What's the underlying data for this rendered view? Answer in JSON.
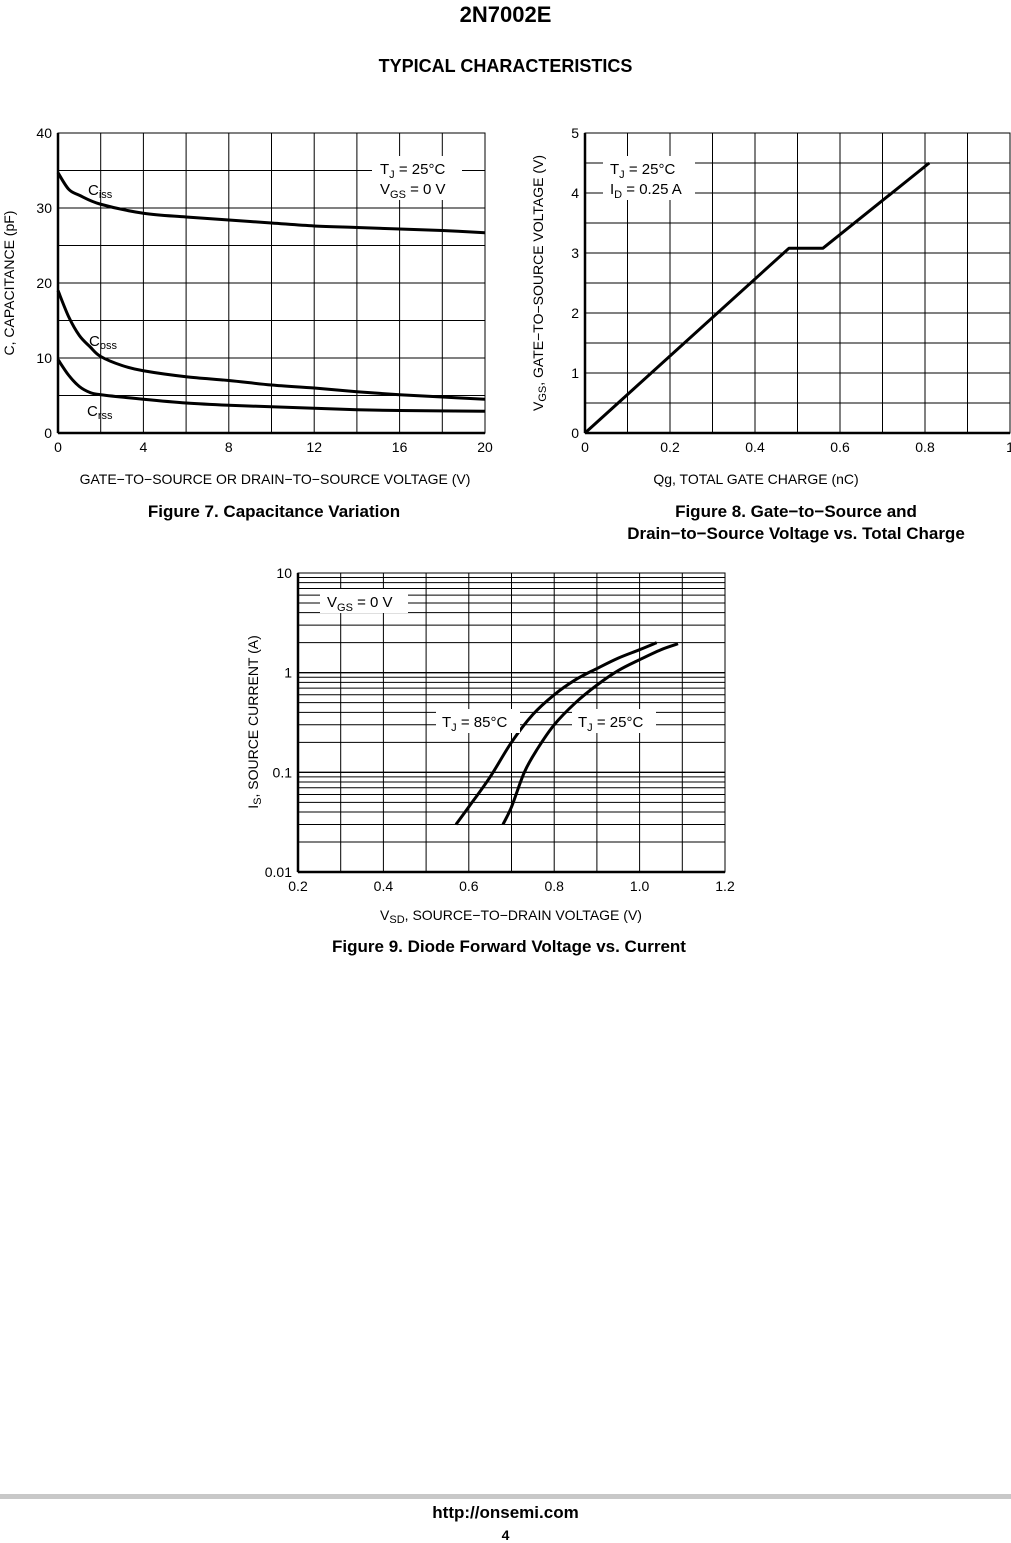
{
  "header": {
    "part_number": "2N7002E",
    "section_title": "TYPICAL CHARACTERISTICS"
  },
  "footer": {
    "url": "http://onsemi.com",
    "page": "4"
  },
  "chart_data": [
    {
      "id": "fig7",
      "type": "line",
      "caption": "Figure 7. Capacitance Variation",
      "xlabel": "GATE−TO−SOURCE OR DRAIN−TO−SOURCE VOLTAGE (V)",
      "ylabel": "C, CAPACITANCE (pF)",
      "xlim": [
        0,
        20
      ],
      "ylim": [
        0,
        40
      ],
      "xticks": [
        0,
        4,
        8,
        12,
        16,
        20
      ],
      "yticks": [
        0,
        10,
        20,
        30,
        40
      ],
      "xgrid_step": 2,
      "ygrid_step": 5,
      "grid": true,
      "annotations": [
        {
          "main": "T",
          "sub": "J",
          "rest": " = 25°C"
        },
        {
          "main": "V",
          "sub": "GS",
          "rest": " = 0 V"
        }
      ],
      "series": [
        {
          "name": "Ciss",
          "label_main": "C",
          "label_sub": "iss",
          "x": [
            0,
            0.5,
            1,
            2,
            4,
            6,
            8,
            10,
            12,
            14,
            16,
            18,
            20
          ],
          "y": [
            34.7,
            32.5,
            31.7,
            30.5,
            29.3,
            28.8,
            28.4,
            28,
            27.6,
            27.4,
            27.2,
            27,
            26.7
          ]
        },
        {
          "name": "Coss",
          "label_main": "C",
          "label_sub": "oss",
          "x": [
            0,
            0.5,
            1,
            1.5,
            2,
            3,
            4,
            6,
            8,
            10,
            12,
            14,
            16,
            18,
            20
          ],
          "y": [
            19,
            15.5,
            13,
            11.5,
            10.2,
            9,
            8.3,
            7.5,
            7,
            6.4,
            6,
            5.5,
            5.1,
            4.8,
            4.5
          ]
        },
        {
          "name": "Crss",
          "label_main": "C",
          "label_sub": "rss",
          "x": [
            0,
            0.5,
            1,
            1.5,
            2,
            4,
            6,
            8,
            10,
            12,
            14,
            16,
            20
          ],
          "y": [
            9.8,
            7.7,
            6.2,
            5.4,
            5.1,
            4.5,
            4,
            3.7,
            3.5,
            3.3,
            3.1,
            3,
            2.9
          ]
        }
      ]
    },
    {
      "id": "fig8",
      "type": "line",
      "caption_lines": [
        "Figure 8. Gate−to−Source and",
        "Drain−to−Source Voltage vs. Total Charge"
      ],
      "xlabel": "Qg, TOTAL GATE CHARGE (nC)",
      "ylabel_main": "V",
      "ylabel_sub": "GS",
      "ylabel_rest": ", GATE−TO−SOURCE VOLTAGE (V)",
      "xlim": [
        0,
        1
      ],
      "ylim": [
        0,
        5
      ],
      "xticks": [
        0,
        0.2,
        0.4,
        0.6,
        0.8,
        1
      ],
      "xtick_labels": [
        "0",
        "0.2",
        "0.4",
        "0.6",
        "0.8",
        "1"
      ],
      "yticks": [
        0,
        1,
        2,
        3,
        4,
        5
      ],
      "xgrid_step": 0.1,
      "ygrid_step": 0.5,
      "grid": true,
      "annotations": [
        {
          "main": "T",
          "sub": "J",
          "rest": " = 25°C"
        },
        {
          "main": "I",
          "sub": "D",
          "rest": " = 0.25 A"
        }
      ],
      "series": [
        {
          "x": [
            0,
            0.48,
            0.56,
            0.81
          ],
          "y": [
            0,
            3.08,
            3.08,
            4.5
          ]
        }
      ]
    },
    {
      "id": "fig9",
      "type": "line",
      "caption": "Figure 9. Diode Forward Voltage vs. Current",
      "xlabel_main": "V",
      "xlabel_sub": "SD",
      "xlabel_rest": ", SOURCE−TO−DRAIN VOLTAGE (V)",
      "ylabel_main": "I",
      "ylabel_sub": "S",
      "ylabel_rest": ", SOURCE CURRENT (A)",
      "xlim": [
        0.2,
        1.2
      ],
      "ylim": [
        0.01,
        10
      ],
      "yscale": "log",
      "xticks": [
        0.2,
        0.4,
        0.6,
        0.8,
        1.0,
        1.2
      ],
      "xtick_labels": [
        "0.2",
        "0.4",
        "0.6",
        "0.8",
        "1.0",
        "1.2"
      ],
      "yticks": [
        0.01,
        0.1,
        1,
        10
      ],
      "ytick_labels": [
        "0.01",
        "0.1",
        "1",
        "10"
      ],
      "xgrid_step": 0.1,
      "grid": true,
      "annotations": [
        {
          "main": "V",
          "sub": "GS",
          "rest": " = 0 V"
        }
      ],
      "series": [
        {
          "name": "TJ = 85°C",
          "label_main": "T",
          "label_sub": "J",
          "label_rest": " = 85°C",
          "x": [
            0.57,
            0.6,
            0.65,
            0.7,
            0.75,
            0.8,
            0.85,
            0.9,
            0.95,
            1.0,
            1.04
          ],
          "y": [
            0.03,
            0.045,
            0.09,
            0.2,
            0.38,
            0.6,
            0.85,
            1.1,
            1.4,
            1.7,
            2.0
          ]
        },
        {
          "name": "TJ = 25°C",
          "label_main": "T",
          "label_sub": "J",
          "label_rest": " = 25°C",
          "x": [
            0.68,
            0.7,
            0.73,
            0.76,
            0.8,
            0.85,
            0.9,
            0.95,
            1.0,
            1.05,
            1.09
          ],
          "y": [
            0.03,
            0.045,
            0.1,
            0.17,
            0.3,
            0.5,
            0.75,
            1.05,
            1.35,
            1.7,
            1.95
          ]
        }
      ]
    }
  ]
}
